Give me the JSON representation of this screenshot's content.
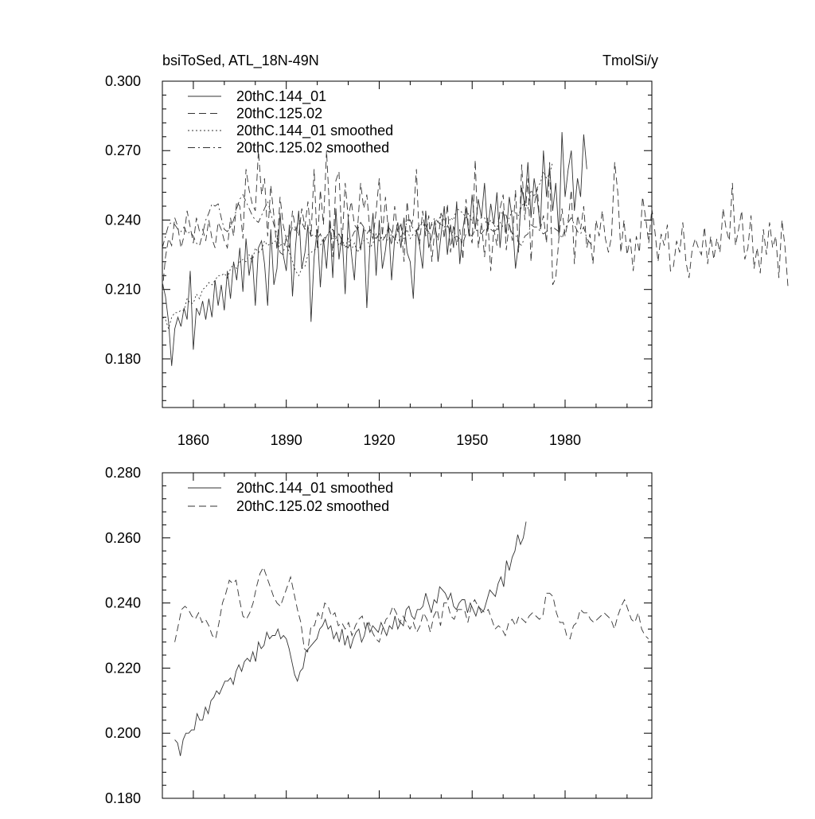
{
  "chart_data": [
    {
      "type": "line",
      "title_left": "bsiToSed, ATL_18N-49N",
      "title_right": "TmolSi/y",
      "xlim": [
        1850,
        2008
      ],
      "ylim": [
        0.159,
        0.3
      ],
      "x_ticks": [
        1860,
        1890,
        1920,
        1950,
        1980
      ],
      "y_ticks": [
        0.18,
        0.21,
        0.24,
        0.27,
        0.3
      ],
      "y_tick_labels": [
        "0.180",
        "0.210",
        "0.240",
        "0.270",
        "0.300"
      ],
      "legend_position": "top-left",
      "series": [
        {
          "name": "20thC.144_01",
          "dash": "solid",
          "x_start": 1850,
          "x_step": 1,
          "values": [
            0.213,
            0.207,
            0.196,
            0.177,
            0.193,
            0.198,
            0.194,
            0.202,
            0.197,
            0.218,
            0.184,
            0.202,
            0.199,
            0.205,
            0.197,
            0.206,
            0.198,
            0.214,
            0.203,
            0.212,
            0.201,
            0.218,
            0.206,
            0.222,
            0.214,
            0.228,
            0.209,
            0.232,
            0.216,
            0.225,
            0.203,
            0.228,
            0.231,
            0.221,
            0.203,
            0.236,
            0.212,
            0.219,
            0.243,
            0.225,
            0.218,
            0.238,
            0.207,
            0.229,
            0.244,
            0.219,
            0.226,
            0.238,
            0.196,
            0.224,
            0.236,
            0.211,
            0.232,
            0.219,
            0.24,
            0.215,
            0.245,
            0.223,
            0.234,
            0.208,
            0.241,
            0.226,
            0.214,
            0.238,
            0.227,
            0.237,
            0.202,
            0.229,
            0.243,
            0.216,
            0.24,
            0.219,
            0.227,
            0.239,
            0.214,
            0.232,
            0.239,
            0.228,
            0.241,
            0.226,
            0.222,
            0.206,
            0.236,
            0.229,
            0.219,
            0.244,
            0.228,
            0.233,
            0.24,
            0.222,
            0.234,
            0.246,
            0.225,
            0.238,
            0.228,
            0.248,
            0.221,
            0.236,
            0.245,
            0.233,
            0.251,
            0.236,
            0.249,
            0.241,
            0.256,
            0.235,
            0.247,
            0.238,
            0.252,
            0.228,
            0.244,
            0.234,
            0.25,
            0.24,
            0.219,
            0.23,
            0.254,
            0.246,
            0.265,
            0.241,
            0.258,
            0.249,
            0.237,
            0.27,
            0.25,
            0.263,
            0.244,
            0.256,
            0.233,
            0.278,
            0.25,
            0.262,
            0.27,
            0.244,
            0.258,
            0.25,
            0.277,
            0.262
          ]
        },
        {
          "name": "20thC.125.02",
          "dash": "dashed",
          "x_start": 1850,
          "x_step": 1,
          "values": [
            0.209,
            0.224,
            0.232,
            0.229,
            0.241,
            0.237,
            0.228,
            0.233,
            0.244,
            0.237,
            0.23,
            0.241,
            0.235,
            0.236,
            0.231,
            0.24,
            0.232,
            0.228,
            0.239,
            0.236,
            0.231,
            0.228,
            0.241,
            0.233,
            0.248,
            0.246,
            0.232,
            0.262,
            0.253,
            0.247,
            0.244,
            0.27,
            0.251,
            0.258,
            0.233,
            0.255,
            0.242,
            0.227,
            0.25,
            0.238,
            0.232,
            0.228,
            0.244,
            0.236,
            0.233,
            0.245,
            0.237,
            0.248,
            0.233,
            0.262,
            0.228,
            0.253,
            0.238,
            0.27,
            0.243,
            0.224,
            0.257,
            0.261,
            0.229,
            0.256,
            0.241,
            0.248,
            0.238,
            0.236,
            0.256,
            0.245,
            0.251,
            0.235,
            0.232,
            0.244,
            0.258,
            0.233,
            0.25,
            0.235,
            0.229,
            0.246,
            0.234,
            0.239,
            0.222,
            0.248,
            0.235,
            0.241,
            0.262,
            0.229,
            0.244,
            0.233,
            0.242,
            0.222,
            0.237,
            0.231,
            0.243,
            0.232,
            0.247,
            0.226,
            0.238,
            0.229,
            0.236,
            0.223,
            0.249,
            0.235,
            0.23,
            0.266,
            0.228,
            0.239,
            0.224,
            0.241,
            0.218,
            0.236,
            0.229,
            0.245,
            0.251,
            0.227,
            0.239,
            0.231,
            0.253,
            0.226,
            0.264,
            0.24,
            0.258,
            0.222,
            0.246,
            0.254,
            0.236,
            0.242,
            0.23,
            0.265,
            0.212,
            0.215,
            0.232,
            0.245,
            0.233,
            0.24,
            0.253,
            0.221,
            0.242,
            0.236,
            0.246,
            0.228,
            0.234,
            0.221,
            0.24,
            0.233,
            0.244,
            0.232,
            0.226,
            0.233,
            0.265,
            0.252,
            0.226,
            0.24,
            0.225,
            0.232,
            0.218,
            0.233,
            0.226,
            0.25,
            0.241,
            0.23,
            0.245,
            0.235,
            0.222,
            0.234,
            0.229,
            0.238,
            0.218,
            0.22,
            0.231,
            0.226,
            0.239,
            0.222,
            0.215,
            0.227,
            0.232,
            0.228,
            0.225,
            0.237,
            0.221,
            0.233,
            0.223,
            0.232,
            0.226,
            0.245,
            0.236,
            0.231,
            0.256,
            0.229,
            0.236,
            0.244,
            0.223,
            0.228,
            0.242,
            0.219,
            0.228,
            0.217,
            0.236,
            0.225,
            0.239,
            0.228,
            0.233,
            0.215,
            0.24,
            0.228,
            0.21
          ]
        },
        {
          "name": "20thC.144_01 smoothed",
          "dash": "dotted",
          "x_start": 1850,
          "x_step": 1,
          "values": [
            0.198,
            0.197,
            0.193,
            0.198,
            0.2,
            0.2,
            0.201,
            0.201,
            0.206,
            0.204,
            0.204,
            0.208,
            0.206,
            0.21,
            0.211,
            0.213,
            0.212,
            0.214,
            0.216,
            0.216,
            0.217,
            0.215,
            0.219,
            0.221,
            0.219,
            0.222,
            0.223,
            0.222,
            0.225,
            0.222,
            0.228,
            0.226,
            0.227,
            0.231,
            0.229,
            0.23,
            0.23,
            0.232,
            0.229,
            0.23,
            0.229,
            0.226,
            0.222,
            0.218,
            0.216,
            0.219,
            0.22,
            0.225,
            0.226,
            0.227,
            0.228,
            0.229,
            0.232,
            0.233,
            0.235,
            0.232,
            0.233,
            0.229,
            0.231,
            0.228,
            0.232,
            0.227,
            0.23,
            0.226,
            0.229,
            0.231,
            0.232,
            0.228,
            0.23,
            0.234,
            0.231,
            0.233,
            0.232,
            0.231,
            0.234,
            0.232,
            0.23,
            0.233,
            0.232,
            0.236,
            0.232,
            0.234,
            0.233,
            0.238,
            0.239,
            0.236,
            0.235,
            0.238,
            0.238,
            0.239,
            0.243,
            0.24,
            0.237,
            0.241,
            0.24,
            0.245,
            0.244,
            0.243,
            0.241,
            0.243,
            0.239,
            0.238,
            0.24,
            0.241,
            0.241,
            0.237,
            0.24,
            0.238,
            0.236,
            0.239,
            0.237,
            0.238,
            0.241,
            0.244,
            0.243,
            0.242,
            0.246,
            0.248,
            0.245,
            0.253,
            0.25,
            0.254,
            0.256,
            0.261,
            0.258,
            0.26,
            0.265
          ]
        },
        {
          "name": "20thC.125.02 smoothed",
          "dash": "dashdot",
          "x_start": 1850,
          "x_step": 1,
          "values": [
            0.228,
            0.233,
            0.238,
            0.239,
            0.238,
            0.236,
            0.235,
            0.237,
            0.234,
            0.235,
            0.233,
            0.23,
            0.229,
            0.234,
            0.24,
            0.243,
            0.247,
            0.246,
            0.247,
            0.241,
            0.236,
            0.235,
            0.237,
            0.24,
            0.245,
            0.249,
            0.251,
            0.248,
            0.245,
            0.242,
            0.24,
            0.239,
            0.242,
            0.245,
            0.248,
            0.243,
            0.238,
            0.234,
            0.226,
            0.225,
            0.233,
            0.233,
            0.237,
            0.235,
            0.24,
            0.239,
            0.236,
            0.237,
            0.233,
            0.234,
            0.232,
            0.234,
            0.23,
            0.233,
            0.235,
            0.236,
            0.232,
            0.234,
            0.231,
            0.229,
            0.228,
            0.232,
            0.235,
            0.236,
            0.239,
            0.237,
            0.234,
            0.236,
            0.234,
            0.232,
            0.234,
            0.231,
            0.233,
            0.237,
            0.235,
            0.231,
            0.236,
            0.238,
            0.233,
            0.24,
            0.24,
            0.236,
            0.235,
            0.238,
            0.238,
            0.238,
            0.234,
            0.239,
            0.241,
            0.239,
            0.238,
            0.237,
            0.238,
            0.235,
            0.232,
            0.233,
            0.232,
            0.23,
            0.234,
            0.235,
            0.233,
            0.236,
            0.235,
            0.234,
            0.236,
            0.237,
            0.236,
            0.235,
            0.236,
            0.243,
            0.243,
            0.242,
            0.237,
            0.234,
            0.234,
            0.23,
            0.229,
            0.233,
            0.234,
            0.238,
            0.237,
            0.237,
            0.235,
            0.234,
            0.235,
            0.236,
            0.237,
            0.236,
            0.235,
            0.232,
            0.236,
            0.239,
            0.241,
            0.238,
            0.235,
            0.234,
            0.237,
            0.232,
            0.23,
            0.229
          ]
        }
      ]
    },
    {
      "type": "line",
      "xlim": [
        1850,
        2008
      ],
      "ylim": [
        0.18,
        0.28
      ],
      "y_ticks": [
        0.18,
        0.2,
        0.22,
        0.24,
        0.26,
        0.28
      ],
      "y_tick_labels": [
        "0.180",
        "0.200",
        "0.220",
        "0.240",
        "0.260",
        "0.280"
      ],
      "legend_position": "top-left",
      "series": [
        {
          "name": "20thC.144_01 smoothed",
          "dash": "solid",
          "x_start": 1854,
          "x_step": 0.9,
          "values": [
            0.198,
            0.197,
            0.193,
            0.198,
            0.2,
            0.2,
            0.201,
            0.201,
            0.206,
            0.204,
            0.204,
            0.208,
            0.206,
            0.21,
            0.211,
            0.213,
            0.212,
            0.214,
            0.216,
            0.216,
            0.217,
            0.215,
            0.219,
            0.221,
            0.219,
            0.222,
            0.223,
            0.222,
            0.225,
            0.222,
            0.228,
            0.226,
            0.227,
            0.231,
            0.229,
            0.23,
            0.23,
            0.232,
            0.229,
            0.23,
            0.229,
            0.226,
            0.222,
            0.218,
            0.216,
            0.219,
            0.22,
            0.225,
            0.226,
            0.227,
            0.228,
            0.229,
            0.232,
            0.233,
            0.235,
            0.232,
            0.233,
            0.229,
            0.231,
            0.228,
            0.232,
            0.227,
            0.23,
            0.226,
            0.229,
            0.231,
            0.232,
            0.228,
            0.23,
            0.234,
            0.231,
            0.233,
            0.232,
            0.231,
            0.234,
            0.232,
            0.23,
            0.233,
            0.232,
            0.236,
            0.232,
            0.234,
            0.233,
            0.238,
            0.239,
            0.236,
            0.235,
            0.238,
            0.238,
            0.239,
            0.243,
            0.24,
            0.237,
            0.241,
            0.24,
            0.245,
            0.244,
            0.243,
            0.241,
            0.243,
            0.239,
            0.238,
            0.24,
            0.241,
            0.241,
            0.237,
            0.24,
            0.238,
            0.236,
            0.239,
            0.237,
            0.238,
            0.241,
            0.244,
            0.243,
            0.242,
            0.246,
            0.248,
            0.245,
            0.253,
            0.25,
            0.254,
            0.256,
            0.261,
            0.258,
            0.26,
            0.265
          ]
        },
        {
          "name": "20thC.125.02 smoothed",
          "dash": "dashed",
          "x_start": 1854,
          "x_step": 1.1,
          "values": [
            0.228,
            0.233,
            0.238,
            0.239,
            0.238,
            0.236,
            0.235,
            0.237,
            0.234,
            0.235,
            0.233,
            0.23,
            0.229,
            0.234,
            0.24,
            0.243,
            0.247,
            0.246,
            0.247,
            0.241,
            0.236,
            0.235,
            0.237,
            0.24,
            0.245,
            0.249,
            0.251,
            0.248,
            0.245,
            0.242,
            0.24,
            0.239,
            0.242,
            0.245,
            0.248,
            0.243,
            0.238,
            0.234,
            0.226,
            0.225,
            0.233,
            0.233,
            0.237,
            0.235,
            0.24,
            0.239,
            0.236,
            0.237,
            0.233,
            0.234,
            0.232,
            0.234,
            0.23,
            0.233,
            0.235,
            0.236,
            0.232,
            0.234,
            0.231,
            0.229,
            0.228,
            0.232,
            0.235,
            0.236,
            0.239,
            0.237,
            0.234,
            0.236,
            0.234,
            0.232,
            0.234,
            0.231,
            0.233,
            0.237,
            0.235,
            0.231,
            0.236,
            0.238,
            0.233,
            0.24,
            0.24,
            0.236,
            0.235,
            0.238,
            0.238,
            0.238,
            0.234,
            0.239,
            0.241,
            0.239,
            0.238,
            0.237,
            0.238,
            0.235,
            0.232,
            0.233,
            0.232,
            0.23,
            0.234,
            0.235,
            0.233,
            0.236,
            0.235,
            0.234,
            0.236,
            0.237,
            0.236,
            0.235,
            0.236,
            0.243,
            0.243,
            0.242,
            0.237,
            0.234,
            0.234,
            0.23,
            0.229,
            0.233,
            0.234,
            0.238,
            0.237,
            0.237,
            0.235,
            0.234,
            0.235,
            0.236,
            0.237,
            0.236,
            0.235,
            0.232,
            0.236,
            0.239,
            0.241,
            0.238,
            0.235,
            0.234,
            0.237,
            0.232,
            0.23,
            0.229
          ]
        }
      ]
    }
  ]
}
